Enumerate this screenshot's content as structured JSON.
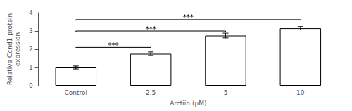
{
  "chart_data": {
    "type": "bar",
    "categories": [
      "Control",
      "2.5",
      "5",
      "10"
    ],
    "values": [
      1.0,
      1.75,
      2.75,
      3.15
    ],
    "errors": [
      0.08,
      0.1,
      0.13,
      0.09
    ],
    "color": "#ffffff",
    "ylabel": "Relative Ccnd1 protein\nexpression",
    "xlabel": "Arctiin (μM)",
    "ylim": [
      0,
      4
    ],
    "yticks": [
      0,
      1,
      2,
      3,
      4
    ],
    "grid": false,
    "annotations": [
      {
        "from": "Control",
        "to": "2.5",
        "y": 2.1,
        "label": "***"
      },
      {
        "from": "Control",
        "to": "5",
        "y": 3.0,
        "label": "***"
      },
      {
        "from": "Control",
        "to": "10",
        "y": 3.62,
        "label": "***"
      }
    ]
  }
}
